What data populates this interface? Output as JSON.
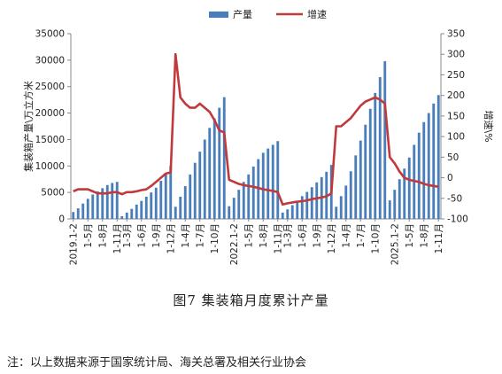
{
  "chart_data": {
    "type": "bar+line",
    "title": "图7 集装箱月度累计产量",
    "ylabel_left": "集装箱产量\\万立方米",
    "ylabel_right": "增速\\%",
    "ylim_left": [
      0,
      35000
    ],
    "ylim_right": [
      -100,
      350
    ],
    "yticks_left": [
      0,
      5000,
      10000,
      15000,
      20000,
      25000,
      30000,
      35000
    ],
    "yticks_right": [
      -100,
      -50,
      0,
      50,
      100,
      150,
      200,
      250,
      300,
      350
    ],
    "xtick_labels": [
      {
        "i": 0,
        "label": "2019.1-2"
      },
      {
        "i": 3,
        "label": "1-5月"
      },
      {
        "i": 6,
        "label": "1-8月"
      },
      {
        "i": 9,
        "label": "1-11月"
      },
      {
        "i": 11,
        "label": "1-3月"
      },
      {
        "i": 14,
        "label": "1-6月"
      },
      {
        "i": 17,
        "label": "1-9月"
      },
      {
        "i": 20,
        "label": "1-12月"
      },
      {
        "i": 23,
        "label": "1-4月"
      },
      {
        "i": 26,
        "label": "1-7月"
      },
      {
        "i": 29,
        "label": "1-10月"
      },
      {
        "i": 33,
        "label": "2022.1-2"
      },
      {
        "i": 36,
        "label": "1-5月"
      },
      {
        "i": 39,
        "label": "1-8月"
      },
      {
        "i": 42,
        "label": "1-11月"
      },
      {
        "i": 44,
        "label": "1-3月"
      },
      {
        "i": 47,
        "label": "1-6月"
      },
      {
        "i": 50,
        "label": "1-9月"
      },
      {
        "i": 53,
        "label": "1-12月"
      },
      {
        "i": 56,
        "label": "1-4月"
      },
      {
        "i": 59,
        "label": "1-7月"
      },
      {
        "i": 62,
        "label": "1-10月"
      },
      {
        "i": 66,
        "label": "2025.1-2"
      },
      {
        "i": 69,
        "label": "1-5月"
      },
      {
        "i": 72,
        "label": "1-8月"
      },
      {
        "i": 75,
        "label": "1-11月"
      }
    ],
    "series": [
      {
        "name": "产量",
        "type": "bar",
        "color": "#4a7ebb",
        "values": [
          1300,
          2000,
          2900,
          3800,
          4600,
          5200,
          5800,
          6400,
          6800,
          7000,
          500,
          1200,
          1900,
          2700,
          3400,
          4200,
          5000,
          5900,
          7200,
          8600,
          10000,
          2300,
          4200,
          6200,
          8400,
          10600,
          12700,
          15000,
          17200,
          19000,
          21000,
          23000,
          2400,
          4000,
          5500,
          7000,
          8400,
          9900,
          11300,
          12500,
          13300,
          14000,
          14700,
          1200,
          1800,
          2600,
          3400,
          4300,
          5100,
          6000,
          6900,
          7900,
          8900,
          10200,
          2300,
          4300,
          6300,
          9000,
          12000,
          14800,
          17800,
          20800,
          23800,
          26800,
          29800,
          3500,
          5500,
          7500,
          9500,
          11600,
          14000,
          16300,
          18300,
          20000,
          21800,
          23400
        ]
      },
      {
        "name": "增速",
        "type": "line",
        "color": "#c0393b",
        "values": [
          -33,
          -28,
          -28,
          -28,
          -33,
          -38,
          -38,
          -38,
          -35,
          -35,
          -40,
          -35,
          -35,
          -33,
          -30,
          -28,
          -20,
          -10,
          0,
          10,
          13,
          300,
          195,
          180,
          170,
          170,
          180,
          170,
          160,
          140,
          115,
          110,
          -5,
          -10,
          -15,
          -18,
          -20,
          -22,
          -25,
          -28,
          -30,
          -32,
          -35,
          -65,
          -62,
          -60,
          -58,
          -57,
          -55,
          -52,
          -50,
          -48,
          -45,
          -38,
          125,
          125,
          135,
          145,
          160,
          175,
          185,
          190,
          195,
          190,
          180,
          50,
          35,
          15,
          0,
          -5,
          -8,
          -10,
          -15,
          -18,
          -20,
          -22
        ]
      }
    ],
    "legend": {
      "position": "top",
      "entries": [
        "产量",
        "增速"
      ]
    }
  },
  "figure": {
    "caption": "图7 集装箱月度累计产量",
    "note": "注：以上数据来源于国家统计局、海关总署及相关行业协会"
  }
}
